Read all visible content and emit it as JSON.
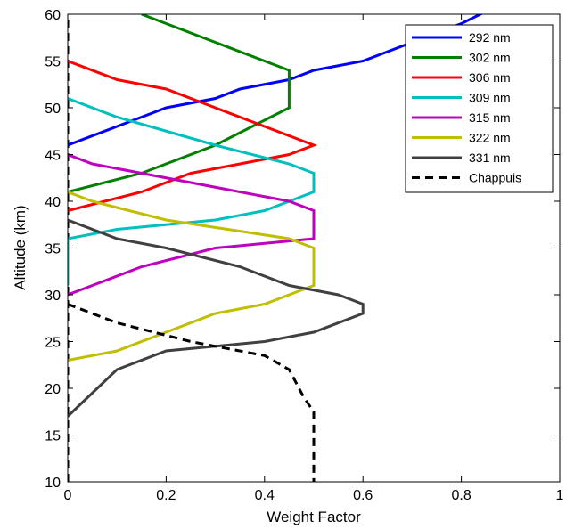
{
  "chart_data": {
    "type": "line",
    "title": "",
    "xlabel": "Weight Factor",
    "ylabel": "Altitude (km)",
    "xlim": [
      0,
      1
    ],
    "ylim": [
      10,
      60
    ],
    "xticks": [
      "0",
      "0.2",
      "0.4",
      "0.6",
      "0.8",
      "1"
    ],
    "yticks": [
      "10",
      "15",
      "20",
      "25",
      "30",
      "35",
      "40",
      "45",
      "50",
      "55",
      "60"
    ],
    "grid": false,
    "legend_position": "top-right",
    "series": [
      {
        "name": "292 nm",
        "color": "#0000ff",
        "style": "solid",
        "points": [
          [
            0,
            46
          ],
          [
            0.1,
            48
          ],
          [
            0.2,
            50
          ],
          [
            0.3,
            51
          ],
          [
            0.35,
            52
          ],
          [
            0.45,
            53
          ],
          [
            0.5,
            54
          ],
          [
            0.6,
            55
          ],
          [
            0.7,
            57
          ],
          [
            0.8,
            59
          ],
          [
            0.85,
            60.3
          ]
        ]
      },
      {
        "name": "302 nm",
        "color": "#008000",
        "style": "solid",
        "points": [
          [
            0,
            41
          ],
          [
            0.15,
            43
          ],
          [
            0.3,
            46
          ],
          [
            0.45,
            50
          ],
          [
            0.45,
            54
          ],
          [
            0.3,
            57
          ],
          [
            0.15,
            60
          ]
        ]
      },
      {
        "name": "306 nm",
        "color": "#ff0000",
        "style": "solid",
        "points": [
          [
            0,
            39
          ],
          [
            0.15,
            41
          ],
          [
            0.25,
            43
          ],
          [
            0.35,
            44
          ],
          [
            0.45,
            45
          ],
          [
            0.5,
            46
          ],
          [
            0.4,
            48
          ],
          [
            0.3,
            50
          ],
          [
            0.2,
            52
          ],
          [
            0.1,
            53
          ],
          [
            0,
            55
          ]
        ]
      },
      {
        "name": "309 nm",
        "color": "#00bfbf",
        "style": "solid",
        "points": [
          [
            0,
            31
          ],
          [
            0,
            36
          ],
          [
            0.1,
            37
          ],
          [
            0.3,
            38
          ],
          [
            0.4,
            39
          ],
          [
            0.5,
            41
          ],
          [
            0.5,
            43
          ],
          [
            0.45,
            44
          ],
          [
            0.3,
            46
          ],
          [
            0.1,
            49
          ],
          [
            0,
            51
          ]
        ]
      },
      {
        "name": "315 nm",
        "color": "#bf00bf",
        "style": "solid",
        "points": [
          [
            0,
            30
          ],
          [
            0.05,
            31
          ],
          [
            0.15,
            33
          ],
          [
            0.3,
            35
          ],
          [
            0.5,
            36
          ],
          [
            0.5,
            39
          ],
          [
            0.45,
            40
          ],
          [
            0.25,
            42
          ],
          [
            0.05,
            44
          ],
          [
            0,
            45
          ]
        ]
      },
      {
        "name": "322 nm",
        "color": "#bfbf00",
        "style": "solid",
        "points": [
          [
            0,
            23
          ],
          [
            0.1,
            24
          ],
          [
            0.2,
            26
          ],
          [
            0.3,
            28
          ],
          [
            0.4,
            29
          ],
          [
            0.5,
            31
          ],
          [
            0.5,
            35
          ],
          [
            0.45,
            36
          ],
          [
            0.2,
            38
          ],
          [
            0.05,
            40
          ],
          [
            0,
            41
          ]
        ]
      },
      {
        "name": "331 nm",
        "color": "#404040",
        "style": "solid",
        "points": [
          [
            0,
            17
          ],
          [
            0.1,
            22
          ],
          [
            0.2,
            24
          ],
          [
            0.3,
            24.5
          ],
          [
            0.4,
            25
          ],
          [
            0.5,
            26
          ],
          [
            0.6,
            28
          ],
          [
            0.6,
            29
          ],
          [
            0.55,
            30
          ],
          [
            0.45,
            31
          ],
          [
            0.35,
            33
          ],
          [
            0.2,
            35
          ],
          [
            0.1,
            36
          ],
          [
            0,
            38
          ]
        ]
      },
      {
        "name": "Chappuis",
        "color": "#000000",
        "style": "dashed",
        "points": [
          [
            0,
            29
          ],
          [
            0.1,
            27
          ],
          [
            0.25,
            25
          ],
          [
            0.3,
            24.5
          ],
          [
            0.4,
            23.5
          ],
          [
            0.45,
            22
          ],
          [
            0.48,
            19
          ],
          [
            0.5,
            17.5
          ],
          [
            0.5,
            10
          ]
        ]
      }
    ],
    "boundary_line": {
      "color": "#000000",
      "style": "dashed",
      "points": [
        [
          0,
          10
        ],
        [
          0,
          60
        ]
      ]
    }
  }
}
